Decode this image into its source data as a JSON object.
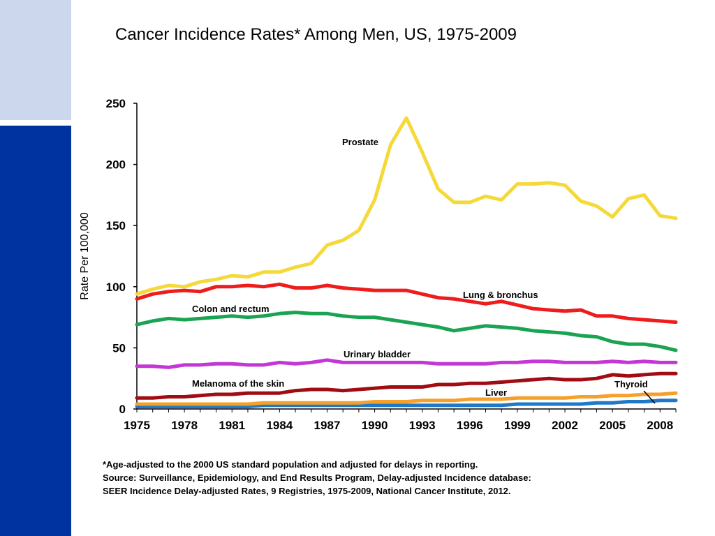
{
  "slide": {
    "title": "Cancer Incidence Rates* Among Men, US, 1975-2009",
    "footnotes": [
      "*Age-adjusted to the 2000 US standard population and adjusted for delays in reporting.",
      "Source: Surveillance, Epidemiology, and End Results Program, Delay-adjusted Incidence database:",
      "SEER Incidence Delay-adjusted Rates, 9 Registries, 1975-2009, National Cancer Institute, 2012."
    ],
    "colors": {
      "light_bar": "#ccd6ec",
      "dark_bar": "#0033a0"
    }
  },
  "chart_data": {
    "type": "line",
    "ylabel": "Rate Per 100,000",
    "ylim": [
      0,
      250
    ],
    "yticks": [
      0,
      50,
      100,
      150,
      200,
      250
    ],
    "xlim": [
      1975,
      2009
    ],
    "xticks": [
      1975,
      1978,
      1981,
      1984,
      1987,
      1990,
      1993,
      1996,
      1999,
      2002,
      2005,
      2008
    ],
    "grid": false,
    "x": [
      1975,
      1976,
      1977,
      1978,
      1979,
      1980,
      1981,
      1982,
      1983,
      1984,
      1985,
      1986,
      1987,
      1988,
      1989,
      1990,
      1991,
      1992,
      1993,
      1994,
      1995,
      1996,
      1997,
      1998,
      1999,
      2000,
      2001,
      2002,
      2003,
      2004,
      2005,
      2006,
      2007,
      2008,
      2009
    ],
    "series": [
      {
        "name": "Prostate",
        "color": "#f5d93a",
        "values": [
          94,
          98,
          101,
          100,
          104,
          106,
          109,
          108,
          112,
          112,
          116,
          119,
          134,
          138,
          146,
          171,
          216,
          238,
          210,
          180,
          169,
          169,
          174,
          171,
          184,
          184,
          185,
          183,
          170,
          166,
          157,
          172,
          175,
          158,
          156
        ]
      },
      {
        "name": "Lung & bronchus",
        "color": "#ee1c1c",
        "values": [
          90,
          94,
          96,
          97,
          96,
          100,
          100,
          101,
          100,
          102,
          99,
          99,
          101,
          99,
          98,
          97,
          97,
          97,
          94,
          91,
          90,
          88,
          86,
          88,
          85,
          82,
          81,
          80,
          81,
          76,
          76,
          74,
          73,
          72,
          71
        ]
      },
      {
        "name": "Colon and rectum",
        "color": "#1aa352",
        "values": [
          69,
          72,
          74,
          73,
          74,
          75,
          76,
          75,
          76,
          78,
          79,
          78,
          78,
          76,
          75,
          75,
          73,
          71,
          69,
          67,
          64,
          66,
          68,
          67,
          66,
          64,
          63,
          62,
          60,
          59,
          55,
          53,
          53,
          51,
          48
        ]
      },
      {
        "name": "Urinary bladder",
        "color": "#c437d6",
        "values": [
          35,
          35,
          34,
          36,
          36,
          37,
          37,
          36,
          36,
          38,
          37,
          38,
          40,
          38,
          38,
          38,
          38,
          38,
          38,
          37,
          37,
          37,
          37,
          38,
          38,
          39,
          39,
          38,
          38,
          38,
          39,
          38,
          39,
          38,
          38
        ]
      },
      {
        "name": "Melanoma of the skin",
        "color": "#a00c12",
        "values": [
          9,
          9,
          10,
          10,
          11,
          12,
          12,
          13,
          13,
          13,
          15,
          16,
          16,
          15,
          16,
          17,
          18,
          18,
          18,
          20,
          20,
          21,
          21,
          22,
          23,
          24,
          25,
          24,
          24,
          25,
          28,
          27,
          28,
          29,
          29
        ]
      },
      {
        "name": "Liver",
        "color": "#f5a02a",
        "values": [
          4,
          4,
          4,
          4,
          4,
          4,
          4,
          4,
          5,
          5,
          5,
          5,
          5,
          5,
          5,
          6,
          6,
          6,
          7,
          7,
          7,
          8,
          8,
          8,
          9,
          9,
          9,
          9,
          10,
          10,
          11,
          11,
          12,
          12,
          13
        ]
      },
      {
        "name": "Thyroid",
        "color": "#1f78c8",
        "values": [
          2,
          2,
          2,
          2,
          2,
          2,
          2,
          2,
          3,
          3,
          3,
          3,
          3,
          3,
          3,
          3,
          3,
          3,
          3,
          3,
          3,
          3,
          3,
          3,
          4,
          4,
          4,
          4,
          4,
          5,
          5,
          6,
          6,
          7,
          7
        ]
      }
    ],
    "labels": [
      {
        "series": "Prostate",
        "text": "Prostate"
      },
      {
        "series": "Lung & bronchus",
        "text": "Lung & bronchus"
      },
      {
        "series": "Colon and rectum",
        "text": "Colon and rectum"
      },
      {
        "series": "Urinary bladder",
        "text": "Urinary bladder"
      },
      {
        "series": "Melanoma of the skin",
        "text": "Melanoma of the skin"
      },
      {
        "series": "Liver",
        "text": "Liver"
      },
      {
        "series": "Thyroid",
        "text": "Thyroid"
      }
    ]
  }
}
